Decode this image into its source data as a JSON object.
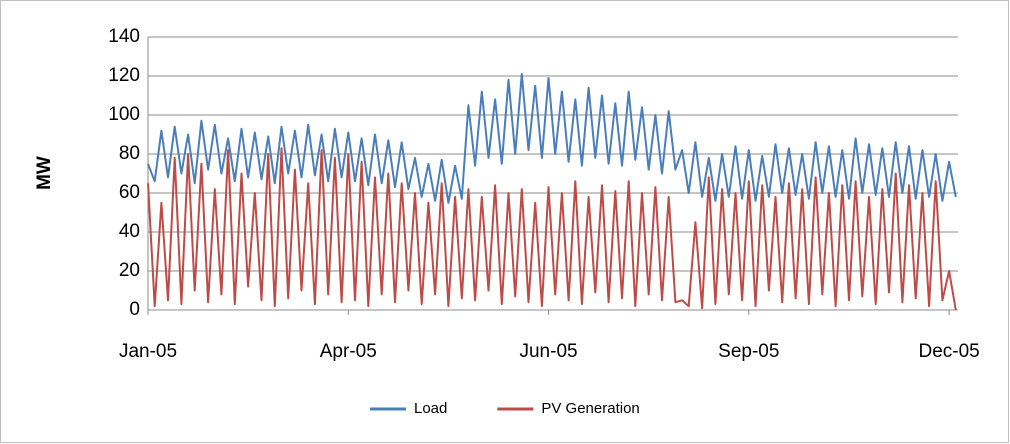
{
  "chart_data": {
    "type": "line",
    "y_label": "MW",
    "legend": "bottom",
    "grid": true,
    "ylim": [
      0,
      140
    ],
    "yticks": [
      0,
      20,
      40,
      60,
      80,
      100,
      120,
      140
    ],
    "xlim": [
      0,
      364
    ],
    "xticks": [
      {
        "value": 0,
        "label": "Jan-05"
      },
      {
        "value": 90,
        "label": "Apr-05"
      },
      {
        "value": 180,
        "label": "Jun-05"
      },
      {
        "value": 270,
        "label": "Sep-05"
      },
      {
        "value": 360,
        "label": "Dec-05"
      }
    ],
    "x": [
      0,
      3,
      6,
      9,
      12,
      15,
      18,
      21,
      24,
      27,
      30,
      33,
      36,
      39,
      42,
      45,
      48,
      51,
      54,
      57,
      60,
      63,
      66,
      69,
      72,
      75,
      78,
      81,
      84,
      87,
      90,
      93,
      96,
      99,
      102,
      105,
      108,
      111,
      114,
      117,
      120,
      123,
      126,
      129,
      132,
      135,
      138,
      141,
      144,
      147,
      150,
      153,
      156,
      159,
      162,
      165,
      168,
      171,
      174,
      177,
      180,
      183,
      186,
      189,
      192,
      195,
      198,
      201,
      204,
      207,
      210,
      213,
      216,
      219,
      222,
      225,
      228,
      231,
      234,
      237,
      240,
      243,
      246,
      249,
      252,
      255,
      258,
      261,
      264,
      267,
      270,
      273,
      276,
      279,
      282,
      285,
      288,
      291,
      294,
      297,
      300,
      303,
      306,
      309,
      312,
      315,
      318,
      321,
      324,
      327,
      330,
      333,
      336,
      339,
      342,
      345,
      348,
      351,
      354,
      357,
      360,
      363
    ],
    "series": [
      {
        "name": "Load",
        "color": "#4a7ebb",
        "values": [
          75,
          66,
          92,
          68,
          94,
          70,
          90,
          65,
          97,
          72,
          95,
          70,
          88,
          66,
          93,
          68,
          91,
          67,
          89,
          65,
          94,
          70,
          92,
          68,
          95,
          69,
          90,
          66,
          93,
          68,
          91,
          66,
          88,
          64,
          90,
          65,
          87,
          63,
          86,
          62,
          78,
          58,
          75,
          56,
          77,
          55,
          74,
          57,
          105,
          74,
          112,
          78,
          108,
          75,
          118,
          80,
          121,
          82,
          115,
          78,
          119,
          80,
          112,
          76,
          108,
          74,
          114,
          78,
          110,
          75,
          106,
          74,
          112,
          77,
          104,
          72,
          100,
          70,
          102,
          72,
          82,
          60,
          86,
          58,
          78,
          56,
          80,
          58,
          84,
          57,
          82,
          56,
          79,
          58,
          85,
          60,
          83,
          59,
          80,
          57,
          86,
          60,
          84,
          58,
          82,
          57,
          88,
          60,
          85,
          59,
          83,
          58,
          86,
          60,
          84,
          57,
          82,
          58,
          80,
          56,
          76,
          58
        ]
      },
      {
        "name": "PV Generation",
        "color": "#be4b48",
        "values": [
          65,
          2,
          55,
          5,
          78,
          3,
          80,
          10,
          75,
          4,
          62,
          8,
          82,
          3,
          70,
          12,
          60,
          5,
          80,
          2,
          83,
          6,
          72,
          10,
          65,
          3,
          82,
          8,
          78,
          4,
          80,
          5,
          76,
          2,
          68,
          8,
          70,
          4,
          65,
          10,
          60,
          3,
          55,
          8,
          65,
          2,
          58,
          6,
          62,
          5,
          58,
          10,
          64,
          3,
          60,
          7,
          62,
          4,
          55,
          2,
          63,
          8,
          60,
          5,
          66,
          3,
          58,
          9,
          64,
          4,
          61,
          6,
          66,
          2,
          60,
          8,
          63,
          5,
          58,
          4,
          5,
          2,
          45,
          1,
          68,
          3,
          62,
          8,
          60,
          5,
          66,
          2,
          64,
          10,
          58,
          4,
          65,
          6,
          62,
          3,
          68,
          8,
          60,
          2,
          64,
          5,
          66,
          7,
          58,
          3,
          62,
          9,
          70,
          4,
          64,
          6,
          60,
          2,
          66,
          5,
          20,
          0
        ]
      }
    ]
  }
}
